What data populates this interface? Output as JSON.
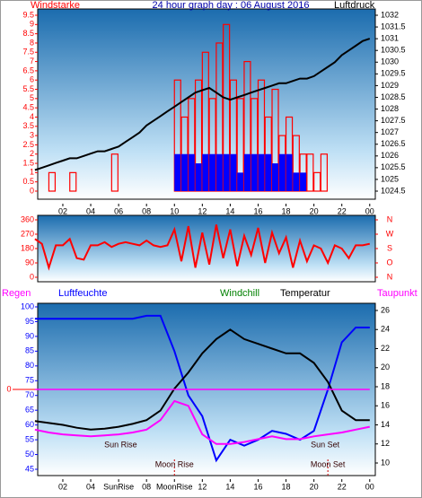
{
  "chart_data": [
    {
      "type": "bar",
      "title": "24 hour graph day : 06 August 2016",
      "y_label": "Windstarke",
      "y2_label": "Luftdruck",
      "x": [
        0,
        0.5,
        1,
        1.5,
        2,
        2.5,
        3,
        3.5,
        4,
        4.5,
        5,
        5.5,
        6,
        6.5,
        7,
        7.5,
        8,
        8.5,
        9,
        9.5,
        10,
        10.5,
        11,
        11.5,
        12,
        12.5,
        13,
        13.5,
        14,
        14.5,
        15,
        15.5,
        16,
        16.5,
        17,
        17.5,
        18,
        18.5,
        19,
        19.5,
        20,
        20.5,
        21,
        21.5,
        22,
        22.5,
        23,
        23.5,
        24
      ],
      "xlim": [
        0.2,
        24.4
      ],
      "xticks": [
        {
          "value": 2,
          "label": "02"
        },
        {
          "value": 4,
          "label": "04"
        },
        {
          "value": 6,
          "label": "06"
        },
        {
          "value": 8,
          "label": "08"
        },
        {
          "value": 10,
          "label": "10"
        },
        12,
        14,
        16,
        18,
        20,
        22,
        {
          "value": 24,
          "label": "00"
        }
      ],
      "ylim": [
        0,
        9.5
      ],
      "yticks": [
        0,
        0.5,
        1,
        1.5,
        2,
        2.5,
        3,
        3.5,
        4,
        4.5,
        5,
        5.5,
        6,
        6.5,
        7,
        7.5,
        8,
        8.5,
        9,
        9.5
      ],
      "y2lim": [
        1024.5,
        1032
      ],
      "y2ticks": [
        1024.5,
        1025,
        1025.5,
        1026,
        1026.5,
        1027,
        1027.5,
        1028,
        1028.5,
        1029,
        1029.5,
        1030,
        1030.5,
        1031,
        1031.5,
        1032
      ],
      "series": [
        {
          "color": "#ff0000",
          "style": "outline",
          "values": [
            0,
            0,
            1,
            0,
            0,
            1,
            0,
            0,
            0,
            0,
            0,
            2,
            0,
            0,
            0,
            0,
            0,
            0,
            0,
            0,
            6,
            4,
            5,
            6,
            7.5,
            5,
            8,
            9,
            6,
            5,
            7,
            5,
            6,
            4,
            5.5,
            3,
            4,
            3,
            2,
            2,
            1,
            2,
            0,
            0,
            0,
            0,
            0,
            0,
            0
          ]
        },
        {
          "color": "#0000ff",
          "style": "fill",
          "values": [
            0,
            0,
            0,
            0,
            0,
            0,
            0,
            0,
            0,
            0,
            0,
            0,
            0,
            0,
            0,
            0,
            0,
            0,
            0,
            0,
            2,
            2,
            2,
            1.5,
            2,
            2,
            2,
            2,
            2,
            1,
            2,
            2,
            2,
            2,
            1.5,
            2,
            2,
            1,
            1,
            0,
            0,
            0,
            0,
            0,
            0,
            0,
            0,
            0,
            0
          ]
        },
        {
          "color": "#000000",
          "style": "line",
          "axis": "y2",
          "values": [
            1025.4,
            1025.5,
            1025.6,
            1025.7,
            1025.8,
            1025.9,
            1025.9,
            1026.0,
            1026.1,
            1026.2,
            1026.2,
            1026.3,
            1026.4,
            1026.6,
            1026.8,
            1027.0,
            1027.3,
            1027.5,
            1027.7,
            1027.9,
            1028.1,
            1028.3,
            1028.5,
            1028.7,
            1028.8,
            1028.9,
            1028.7,
            1028.5,
            1028.4,
            1028.5,
            1028.6,
            1028.7,
            1028.8,
            1028.9,
            1029.0,
            1029.1,
            1029.1,
            1029.2,
            1029.3,
            1029.3,
            1029.4,
            1029.6,
            1029.8,
            1030.0,
            1030.3,
            1030.5,
            1030.7,
            1030.9,
            1031.0
          ]
        }
      ]
    },
    {
      "type": "line",
      "x": [
        0,
        0.5,
        1,
        1.5,
        2,
        2.5,
        3,
        3.5,
        4,
        4.5,
        5,
        5.5,
        6,
        6.5,
        7,
        7.5,
        8,
        8.5,
        9,
        9.5,
        10,
        10.5,
        11,
        11.5,
        12,
        12.5,
        13,
        13.5,
        14,
        14.5,
        15,
        15.5,
        16,
        16.5,
        17,
        17.5,
        18,
        18.5,
        19,
        19.5,
        20,
        20.5,
        21,
        21.5,
        22,
        22.5,
        23,
        23.5,
        24
      ],
      "xlim": [
        0.2,
        24.4
      ],
      "xticks": [
        {
          "value": 2,
          "label": "02"
        },
        {
          "value": 4,
          "label": "04"
        },
        {
          "value": 6,
          "label": "06"
        },
        {
          "value": 8,
          "label": "08"
        },
        {
          "value": 10,
          "label": "10"
        },
        12,
        14,
        16,
        18,
        20,
        22,
        {
          "value": 24,
          "label": "00"
        }
      ],
      "ylim": [
        0,
        360
      ],
      "yticks": [
        0,
        90,
        180,
        270,
        360
      ],
      "y2ticks": [
        {
          "value": 360,
          "label": "N"
        },
        {
          "value": 270,
          "label": "W"
        },
        {
          "value": 180,
          "label": "S"
        },
        {
          "value": 90,
          "label": "O"
        },
        {
          "value": 0,
          "label": "N"
        }
      ],
      "series": [
        {
          "color": "#ff0000",
          "values": [
            240,
            210,
            60,
            200,
            200,
            240,
            120,
            110,
            200,
            200,
            220,
            190,
            210,
            220,
            210,
            200,
            230,
            200,
            190,
            200,
            300,
            100,
            320,
            60,
            280,
            80,
            330,
            120,
            300,
            70,
            260,
            140,
            310,
            90,
            280,
            150,
            250,
            60,
            230,
            100,
            200,
            180,
            90,
            200,
            180,
            120,
            200,
            200,
            210
          ]
        }
      ]
    },
    {
      "type": "line",
      "labels": [
        {
          "text": "Regen",
          "color": "#ff00ff"
        },
        {
          "text": "Luftfeuchte",
          "color": "#0000ff"
        },
        {
          "text": "Windchill",
          "color": "#008000"
        },
        {
          "text": "Temperatur",
          "color": "#000000"
        },
        {
          "text": "Taupunkt",
          "color": "#ff00ff"
        }
      ],
      "x": [
        0,
        1,
        2,
        3,
        4,
        5,
        6,
        7,
        8,
        9,
        10,
        11,
        12,
        13,
        14,
        15,
        16,
        17,
        18,
        19,
        20,
        21,
        22,
        23,
        24
      ],
      "xlim": [
        0.2,
        24.4
      ],
      "xticks": [
        {
          "value": 2,
          "label": "02"
        },
        {
          "value": 4,
          "label": "04"
        },
        {
          "value": 6,
          "label": "SunRise"
        },
        {
          "value": 8,
          "label": "08"
        },
        {
          "value": 10,
          "label": "MoonRise"
        },
        12,
        14,
        16,
        18,
        20,
        22,
        {
          "value": 24,
          "label": "00"
        }
      ],
      "ylim": [
        45,
        100
      ],
      "yticks": [
        45,
        50,
        55,
        60,
        65,
        70,
        75,
        80,
        85,
        90,
        95,
        100
      ],
      "y2lim": [
        10,
        26
      ],
      "y2ticks": [
        10,
        12,
        14,
        16,
        18,
        20,
        22,
        24,
        26
      ],
      "y3lim": [
        -1,
        1
      ],
      "y3ticks": [
        0
      ],
      "events": [
        {
          "text": "Sun Rise",
          "time": 6,
          "line": false
        },
        {
          "text": "Moon Rise",
          "time": 10,
          "line": true
        },
        {
          "text": "Sun Set",
          "time": 20.8,
          "line": false
        },
        {
          "text": "Moon Set",
          "time": 21,
          "line": true
        }
      ],
      "series": [
        {
          "color": "#0000ff",
          "values": [
            96,
            96,
            96,
            96,
            96,
            96,
            96,
            96,
            97,
            97,
            85,
            70,
            63,
            48,
            55,
            53,
            55,
            58,
            57,
            55,
            58,
            72,
            88,
            93,
            93
          ]
        },
        {
          "color": "#000000",
          "axis": "y2",
          "values": [
            14.4,
            14.2,
            14,
            13.7,
            13.5,
            13.6,
            13.8,
            14.1,
            14.5,
            15.5,
            17.8,
            19.5,
            21.5,
            23,
            24,
            23,
            22.5,
            22,
            21.5,
            21.5,
            20.5,
            18.5,
            15.5,
            14.5,
            14.5
          ]
        },
        {
          "color": "#ff00ff",
          "axis": "y2",
          "values": [
            13.5,
            13.2,
            13,
            12.9,
            12.8,
            12.9,
            13,
            13.2,
            13.5,
            14.5,
            16.5,
            16,
            13,
            12,
            12,
            12.2,
            12.5,
            12.8,
            12.5,
            12.5,
            12.8,
            13,
            13.2,
            13.5,
            13.8
          ]
        },
        {
          "color": "#ff00ff",
          "axis": "y3",
          "values": [
            0,
            0,
            0,
            0,
            0,
            0,
            0,
            0,
            0,
            0,
            0,
            0,
            0,
            0,
            0,
            0,
            0,
            0,
            0,
            0,
            0,
            0,
            0,
            0,
            0
          ]
        }
      ]
    }
  ]
}
